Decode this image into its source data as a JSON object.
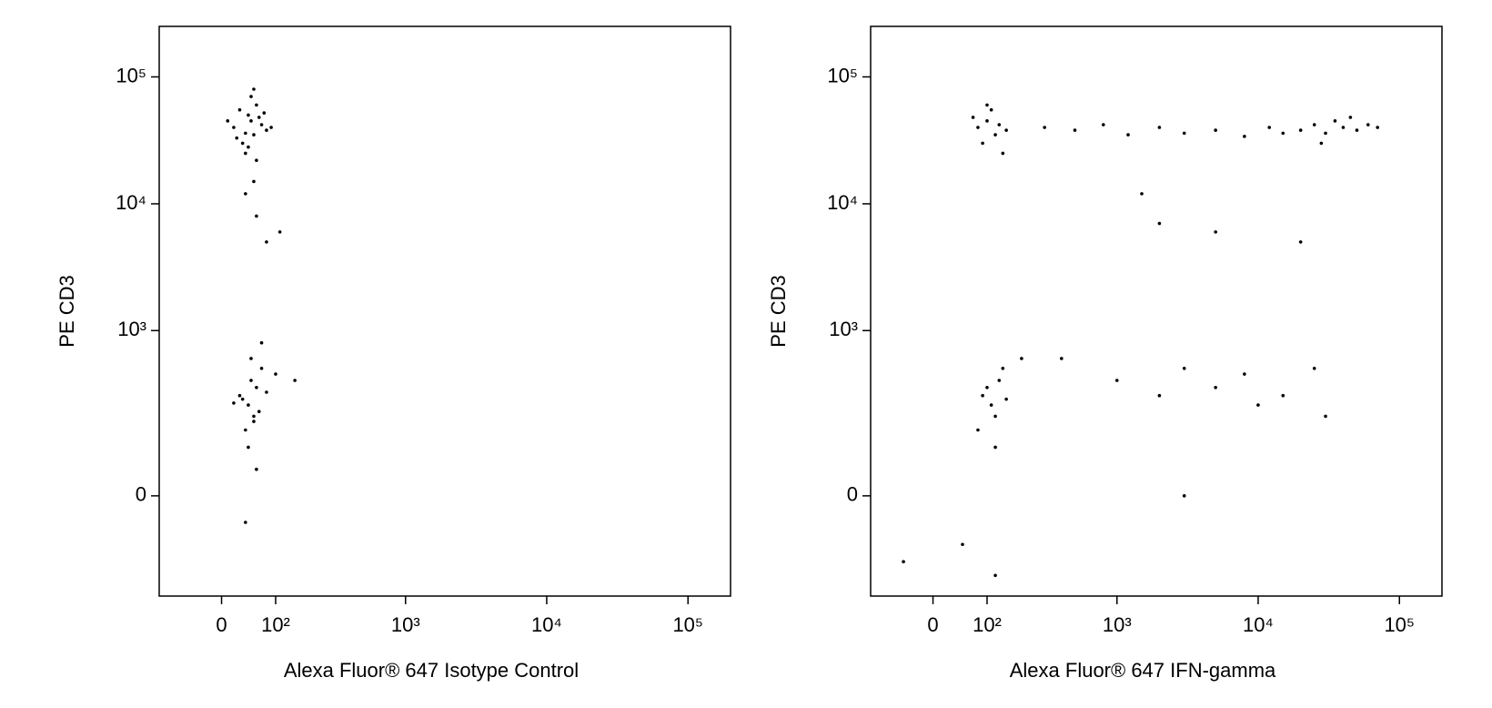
{
  "chart_data": [
    {
      "type": "scatter",
      "x_label": "Alexa Fluor® 647 Isotype Control",
      "y_label": "PE CD3",
      "xscale": "biexponential",
      "yscale": "biexponential",
      "color": "#000000",
      "xlim": [
        -120,
        200000
      ],
      "ylim": [
        -300,
        250000
      ],
      "xticks": [
        0,
        {
          "value": 100,
          "label": "10²"
        },
        {
          "value": 1000,
          "label": "10³"
        },
        {
          "value": 10000,
          "label": "10⁴"
        },
        {
          "value": 100000,
          "label": "10⁵"
        }
      ],
      "yticks": [
        0,
        {
          "value": 1000,
          "label": "10³"
        },
        {
          "value": 10000,
          "label": "10⁴"
        },
        {
          "value": 100000,
          "label": "10⁵"
        }
      ],
      "x": [
        20,
        35,
        45,
        50,
        55,
        60,
        70,
        80,
        30,
        40,
        65,
        25,
        50,
        45,
        90,
        10,
        55,
        75,
        60,
        40,
        40,
        60,
        80,
        55,
        110,
        30,
        45,
        50,
        55,
        60,
        70,
        40,
        35,
        65,
        80,
        20,
        50,
        45,
        55,
        100,
        60,
        40,
        70,
        150
      ],
      "y": [
        40000,
        30000,
        50000,
        45000,
        35000,
        60000,
        42000,
        38000,
        55000,
        25000,
        48000,
        33000,
        70000,
        28000,
        40000,
        45000,
        80000,
        52000,
        22000,
        36000,
        12000,
        8000,
        5000,
        15000,
        6000,
        300,
        250,
        400,
        200,
        350,
        500,
        150,
        280,
        220,
        320,
        260,
        600,
        100,
        180,
        450,
        50,
        -50,
        800,
        400
      ]
    },
    {
      "type": "scatter",
      "x_label": "Alexa Fluor® 647 IFN-gamma",
      "y_label": "PE CD3",
      "xscale": "biexponential",
      "yscale": "biexponential",
      "color": "#000000",
      "xlim": [
        -120,
        200000
      ],
      "ylim": [
        -300,
        250000
      ],
      "xticks": [
        0,
        {
          "value": 100,
          "label": "10²"
        },
        {
          "value": 1000,
          "label": "10³"
        },
        {
          "value": 10000,
          "label": "10⁴"
        },
        {
          "value": 100000,
          "label": "10⁵"
        }
      ],
      "yticks": [
        0,
        {
          "value": 1000,
          "label": "10³"
        },
        {
          "value": 10000,
          "label": "10⁴"
        },
        {
          "value": 100000,
          "label": "10⁵"
        }
      ],
      "x": [
        80,
        100,
        120,
        110,
        90,
        130,
        150,
        100,
        70,
        140,
        300,
        500,
        800,
        1200,
        2000,
        3000,
        5000,
        8000,
        12000,
        20000,
        25000,
        30000,
        35000,
        40000,
        50000,
        60000,
        70000,
        28000,
        15000,
        45000,
        2000,
        5000,
        20000,
        1500,
        90,
        110,
        120,
        130,
        100,
        150,
        80,
        140,
        120,
        200,
        1000,
        2000,
        3000,
        5000,
        8000,
        10000,
        15000,
        30000,
        400,
        25000,
        -50,
        50,
        120,
        3000
      ],
      "y": [
        40000,
        45000,
        35000,
        55000,
        30000,
        42000,
        38000,
        60000,
        48000,
        25000,
        40000,
        38000,
        42000,
        35000,
        40000,
        36000,
        38000,
        34000,
        40000,
        38000,
        42000,
        36000,
        45000,
        40000,
        38000,
        42000,
        40000,
        30000,
        36000,
        48000,
        7000,
        6000,
        5000,
        12000,
        300,
        250,
        200,
        400,
        350,
        280,
        150,
        500,
        100,
        600,
        400,
        300,
        500,
        350,
        450,
        250,
        300,
        200,
        600,
        500,
        -150,
        -100,
        -200,
        0
      ]
    }
  ]
}
